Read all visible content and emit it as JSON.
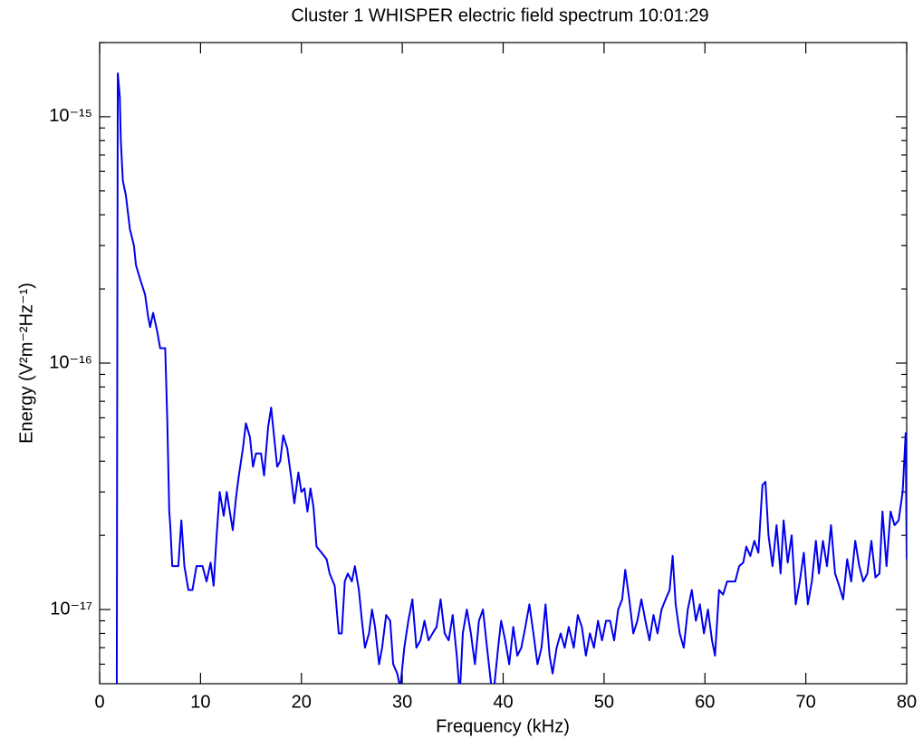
{
  "chart_data": {
    "type": "line",
    "title": "Cluster 1 WHISPER electric field spectrum 10:01:29",
    "xlabel": "Frequency (kHz)",
    "ylabel": "Energy (V²m⁻²Hz⁻¹)",
    "log_y": true,
    "grid": false,
    "xlim": [
      0,
      80
    ],
    "xticks": [
      0,
      10,
      20,
      30,
      40,
      50,
      60,
      70,
      80
    ],
    "ylim": [
      5e-18,
      2e-15
    ],
    "yticks": [
      {
        "value": 1e-17,
        "label": "10⁻¹⁷"
      },
      {
        "value": 1e-16,
        "label": "10⁻¹⁶"
      },
      {
        "value": 1e-15,
        "label": "10⁻¹⁵"
      }
    ],
    "yminorticks": [
      6e-18,
      7e-18,
      8e-18,
      9e-18,
      2e-17,
      3e-17,
      4e-17,
      5e-17,
      6e-17,
      7e-17,
      8e-17,
      9e-17,
      2e-16,
      3e-16,
      4e-16,
      5e-16,
      6e-16,
      7e-16,
      8e-16,
      9e-16,
      2e-15
    ],
    "x": [
      1.7,
      1.75,
      1.8,
      2.0,
      2.1,
      2.3,
      2.6,
      3.0,
      3.4,
      3.6,
      4.0,
      4.5,
      4.8,
      5.0,
      5.3,
      5.7,
      6.0,
      6.5,
      6.7,
      6.9,
      7.0,
      7.2,
      7.8,
      8.1,
      8.4,
      8.8,
      9.2,
      9.6,
      10.2,
      10.6,
      11.0,
      11.3,
      11.6,
      11.9,
      12.3,
      12.6,
      12.9,
      13.2,
      13.5,
      13.8,
      14.2,
      14.5,
      14.9,
      15.2,
      15.5,
      16.0,
      16.3,
      16.7,
      17.0,
      17.3,
      17.6,
      17.9,
      18.2,
      18.6,
      19.0,
      19.3,
      19.7,
      20.0,
      20.3,
      20.6,
      20.9,
      21.2,
      21.5,
      22.0,
      22.5,
      22.8,
      23.3,
      23.7,
      24.0,
      24.3,
      24.6,
      25.0,
      25.3,
      25.7,
      26.0,
      26.3,
      26.7,
      27.0,
      27.3,
      27.7,
      28.0,
      28.4,
      28.8,
      29.1,
      29.5,
      29.8,
      30.2,
      30.6,
      31.0,
      31.4,
      31.8,
      32.2,
      32.6,
      33.0,
      33.4,
      33.8,
      34.2,
      34.6,
      35.0,
      35.4,
      35.7,
      36.0,
      36.4,
      36.8,
      37.2,
      37.6,
      38.0,
      38.4,
      38.8,
      39.1,
      39.5,
      39.8,
      40.2,
      40.6,
      41.0,
      41.4,
      41.8,
      42.2,
      42.6,
      43.0,
      43.4,
      43.8,
      44.2,
      44.6,
      44.9,
      45.3,
      45.7,
      46.1,
      46.5,
      47.0,
      47.4,
      47.8,
      48.2,
      48.6,
      49.0,
      49.4,
      49.8,
      50.2,
      50.6,
      51.0,
      51.4,
      51.8,
      52.1,
      52.5,
      52.9,
      53.3,
      53.7,
      54.1,
      54.5,
      54.9,
      55.3,
      55.7,
      56.1,
      56.5,
      56.8,
      57.1,
      57.5,
      57.9,
      58.3,
      58.7,
      59.1,
      59.5,
      59.9,
      60.3,
      60.7,
      61.0,
      61.4,
      61.8,
      62.2,
      62.6,
      63.0,
      63.4,
      63.8,
      64.1,
      64.5,
      64.9,
      65.3,
      65.7,
      66.0,
      66.3,
      66.7,
      67.1,
      67.5,
      67.8,
      68.2,
      68.6,
      69.0,
      69.4,
      69.8,
      70.2,
      70.6,
      71.0,
      71.3,
      71.7,
      72.1,
      72.5,
      72.9,
      73.3,
      73.7,
      74.1,
      74.5,
      74.9,
      75.3,
      75.7,
      76.1,
      76.5,
      76.9,
      77.3,
      77.6,
      78.0,
      78.4,
      78.8,
      79.2,
      79.6,
      79.9,
      80.0
    ],
    "series": [
      {
        "color": "#0000ee",
        "values": [
          5e-18,
          1.2e-16,
          1.5e-15,
          1.2e-15,
          8e-16,
          5.5e-16,
          4.8e-16,
          3.5e-16,
          3e-16,
          2.5e-16,
          2.2e-16,
          1.9e-16,
          1.55e-16,
          1.4e-16,
          1.6e-16,
          1.35e-16,
          1.15e-16,
          1.15e-16,
          6e-17,
          2.5e-17,
          2.2e-17,
          1.5e-17,
          1.5e-17,
          2.3e-17,
          1.5e-17,
          1.2e-17,
          1.2e-17,
          1.5e-17,
          1.5e-17,
          1.3e-17,
          1.55e-17,
          1.25e-17,
          2e-17,
          3e-17,
          2.4e-17,
          3e-17,
          2.5e-17,
          2.1e-17,
          2.8e-17,
          3.5e-17,
          4.5e-17,
          5.7e-17,
          5e-17,
          3.8e-17,
          4.3e-17,
          4.3e-17,
          3.5e-17,
          5.5e-17,
          6.6e-17,
          5e-17,
          3.8e-17,
          4e-17,
          5.1e-17,
          4.5e-17,
          3.4e-17,
          2.7e-17,
          3.6e-17,
          3e-17,
          3.1e-17,
          2.5e-17,
          3.1e-17,
          2.6e-17,
          1.8e-17,
          1.7e-17,
          1.6e-17,
          1.4e-17,
          1.25e-17,
          8e-18,
          8e-18,
          1.3e-17,
          1.4e-17,
          1.3e-17,
          1.5e-17,
          1.2e-17,
          9e-18,
          7e-18,
          8e-18,
          1e-17,
          8.5e-18,
          6e-18,
          7e-18,
          9.5e-18,
          9e-18,
          6e-18,
          5.5e-18,
          4.8e-18,
          7e-18,
          9e-18,
          1.1e-17,
          7e-18,
          7.5e-18,
          9e-18,
          7.5e-18,
          8e-18,
          8.5e-18,
          1.1e-17,
          8e-18,
          7.5e-18,
          9.5e-18,
          6.5e-18,
          4.5e-18,
          8e-18,
          1e-17,
          8e-18,
          6e-18,
          9e-18,
          1e-17,
          7e-18,
          5e-18,
          4.8e-18,
          7e-18,
          9e-18,
          7.5e-18,
          6e-18,
          8.5e-18,
          6.5e-18,
          7e-18,
          8.5e-18,
          1.05e-17,
          8e-18,
          6e-18,
          7e-18,
          1.05e-17,
          6.5e-18,
          5.5e-18,
          7e-18,
          8e-18,
          7e-18,
          8.5e-18,
          7e-18,
          9.5e-18,
          8.5e-18,
          6.5e-18,
          8e-18,
          7e-18,
          9e-18,
          7.5e-18,
          9e-18,
          9e-18,
          7.5e-18,
          1e-17,
          1.1e-17,
          1.45e-17,
          1.1e-17,
          8e-18,
          9e-18,
          1.1e-17,
          9e-18,
          7.5e-18,
          9.5e-18,
          8e-18,
          1e-17,
          1.1e-17,
          1.2e-17,
          1.65e-17,
          1.05e-17,
          8e-18,
          7e-18,
          1e-17,
          1.2e-17,
          9e-18,
          1.05e-17,
          8e-18,
          1e-17,
          7.5e-18,
          6.5e-18,
          1.2e-17,
          1.15e-17,
          1.3e-17,
          1.3e-17,
          1.3e-17,
          1.5e-17,
          1.55e-17,
          1.8e-17,
          1.65e-17,
          1.9e-17,
          1.7e-17,
          3.2e-17,
          3.3e-17,
          2e-17,
          1.5e-17,
          2.2e-17,
          1.4e-17,
          2.3e-17,
          1.55e-17,
          2e-17,
          1.05e-17,
          1.3e-17,
          1.7e-17,
          1.05e-17,
          1.3e-17,
          1.9e-17,
          1.4e-17,
          1.9e-17,
          1.5e-17,
          2.2e-17,
          1.4e-17,
          1.25e-17,
          1.1e-17,
          1.6e-17,
          1.3e-17,
          1.9e-17,
          1.5e-17,
          1.3e-17,
          1.4e-17,
          1.9e-17,
          1.35e-17,
          1.4e-17,
          2.5e-17,
          1.5e-17,
          2.5e-17,
          2.2e-17,
          2.3e-17,
          3e-17,
          5.2e-17,
          1.6e-17
        ]
      }
    ]
  }
}
